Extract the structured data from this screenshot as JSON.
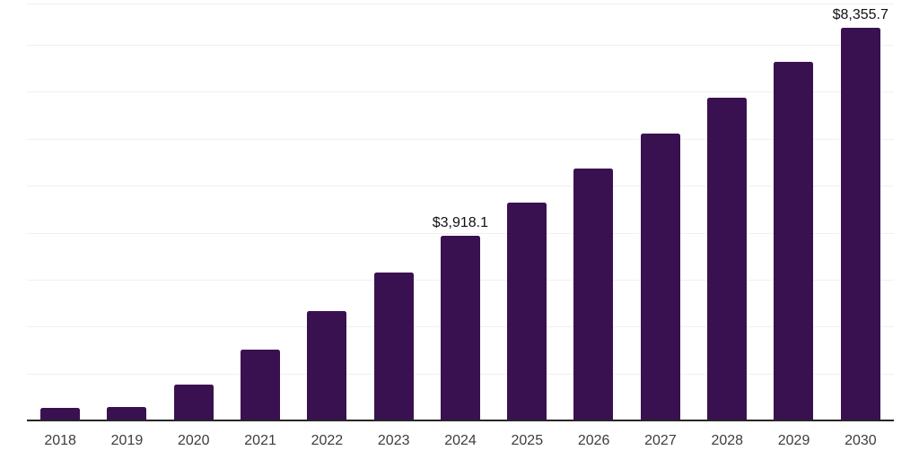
{
  "chart_data": {
    "type": "bar",
    "title": "",
    "xlabel": "",
    "ylabel": "",
    "categories": [
      "2018",
      "2019",
      "2020",
      "2021",
      "2022",
      "2023",
      "2024",
      "2025",
      "2026",
      "2027",
      "2028",
      "2029",
      "2030"
    ],
    "values": [
      240,
      268,
      746,
      1491,
      2314,
      3136,
      3918.1,
      4627,
      5354,
      6099,
      6864,
      7616,
      8355.7
    ],
    "value_labels": [
      "",
      "",
      "",
      "",
      "",
      "",
      "$3,918.1",
      "",
      "",
      "",
      "",
      "",
      "$8,355.7"
    ],
    "ylim": [
      0,
      8900
    ],
    "gridline_interval": 1000,
    "grid": "horizontal",
    "legend": "none",
    "colors": {
      "bar": "#3a1150",
      "gridline": "#f0f0f0",
      "axis_line": "#262626",
      "tick_label": "#3d3d3d",
      "value_label": "#111111",
      "background": "#ffffff"
    }
  }
}
